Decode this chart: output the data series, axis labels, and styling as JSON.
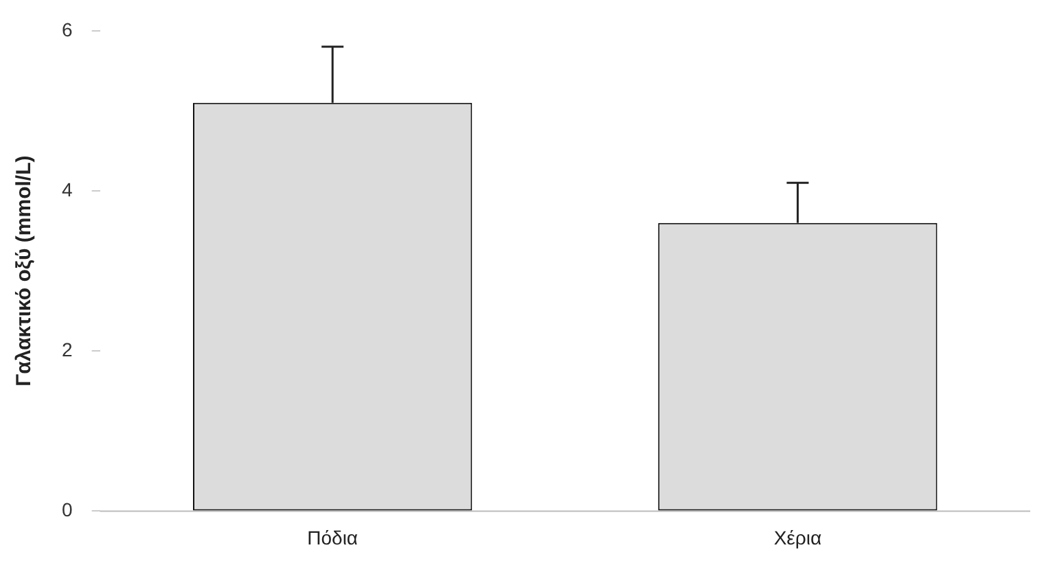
{
  "chart_data": {
    "type": "bar",
    "ylabel": "Γαλακτικό οξύ (mmol/L)",
    "categories": [
      "Πόδια",
      "Χέρια"
    ],
    "values": [
      5.1,
      3.6
    ],
    "errors": [
      [
        5.1,
        5.8
      ],
      [
        3.6,
        4.1
      ]
    ],
    "color": "#dcdcdc",
    "ylim": [
      0,
      6
    ],
    "yticks": [
      0,
      2,
      4,
      6
    ],
    "grid": false,
    "legend": false
  }
}
